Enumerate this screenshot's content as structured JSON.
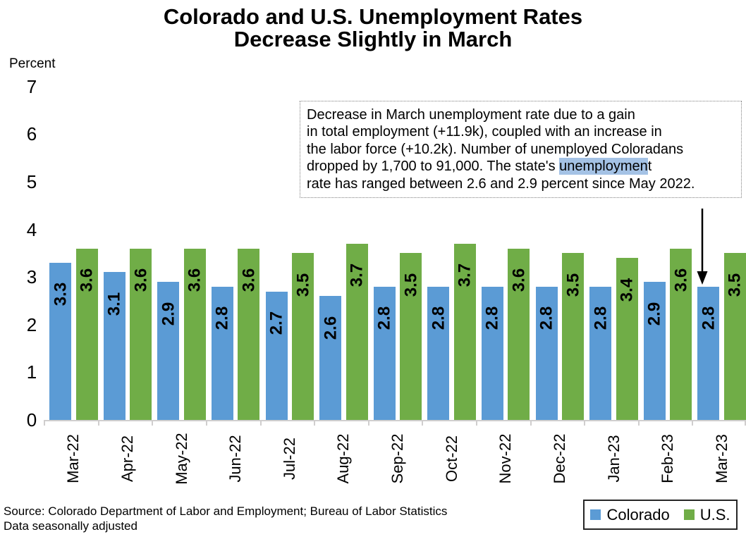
{
  "title": {
    "line1": "Colorado and U.S. Unemployment Rates",
    "line2": "Decrease Slightly in March"
  },
  "y_axis": {
    "label": "Percent",
    "ticks": [
      7,
      6,
      5,
      4,
      3,
      2,
      1,
      0
    ]
  },
  "annotation": {
    "line1": "Decrease in March unemployment rate due to a gain",
    "line2": "in total employment (+11.9k), coupled with an increase in",
    "line3": "the labor force (+10.2k). Number of unemployed Coloradans",
    "line4_before": "dropped by 1,700 to 91,000. The state's ",
    "line4_highlight": "unemploymen",
    "line4_after": "t",
    "line5": "rate has ranged between 2.6 and 2.9 percent since May 2022.",
    "highlight_color": "#a4c2e5"
  },
  "chart_data": {
    "type": "bar",
    "title": "Colorado and U.S. Unemployment Rates Decrease Slightly in March",
    "xlabel": "",
    "ylabel": "Percent",
    "ylim": [
      0,
      7
    ],
    "grid": false,
    "legend_position": "bottom-right",
    "categories": [
      "Mar-22",
      "Apr-22",
      "May-22",
      "Jun-22",
      "Jul-22",
      "Aug-22",
      "Sep-22",
      "Oct-22",
      "Nov-22",
      "Dec-22",
      "Jan-23",
      "Feb-23",
      "Mar-23"
    ],
    "series": [
      {
        "name": "Colorado",
        "color": "#5b9bd5",
        "values": [
          3.3,
          3.1,
          2.9,
          2.8,
          2.7,
          2.6,
          2.8,
          2.8,
          2.8,
          2.8,
          2.8,
          2.9,
          2.8
        ]
      },
      {
        "name": "U.S.",
        "color": "#70ad47",
        "values": [
          3.6,
          3.6,
          3.6,
          3.6,
          3.5,
          3.7,
          3.5,
          3.7,
          3.6,
          3.5,
          3.4,
          3.6,
          3.5
        ]
      }
    ]
  },
  "footer": {
    "source": "Source: Colorado Department of Labor and Employment; Bureau of Labor Statistics",
    "note": "Data seasonally adjusted"
  }
}
